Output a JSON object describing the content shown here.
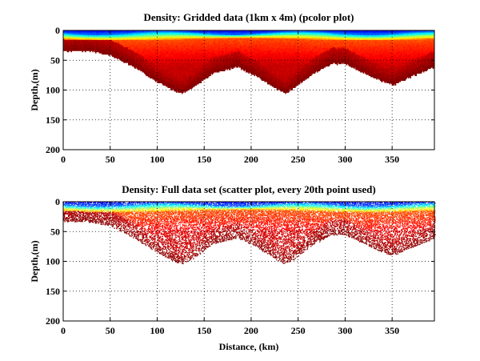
{
  "figure": {
    "background": "#ffffff"
  },
  "colormap": [
    "#00008f",
    "#0000ff",
    "#0080ff",
    "#00ffff",
    "#80ff80",
    "#ffff00",
    "#ff8000",
    "#ff0000",
    "#800000"
  ],
  "chart_data": [
    {
      "type": "heatmap",
      "title": "Density: Gridded data (1km x 4m) (pcolor plot)",
      "xlabel": "",
      "ylabel": "Depth,(m)",
      "xlim": [
        0,
        395
      ],
      "ylim": [
        200,
        0
      ],
      "y_reversed": true,
      "xticks": [
        0,
        50,
        100,
        150,
        200,
        250,
        300,
        350
      ],
      "yticks": [
        0,
        50,
        100,
        150,
        200
      ],
      "grid": true,
      "grid_style": "dotted",
      "rendering": "pcolor",
      "resolution": "1km x 4m",
      "bottom_depth_profile": {
        "x": [
          0,
          25,
          50,
          75,
          100,
          118,
          126,
          135,
          160,
          185,
          205,
          228,
          236,
          245,
          265,
          285,
          300,
          320,
          340,
          352,
          365,
          380,
          395
        ],
        "depth": [
          33,
          33,
          40,
          60,
          85,
          100,
          104,
          98,
          70,
          60,
          75,
          98,
          104,
          96,
          72,
          55,
          55,
          70,
          85,
          90,
          80,
          70,
          60
        ]
      }
    },
    {
      "type": "scatter",
      "title": "Density: Full data set (scatter plot, every 20th point used)",
      "xlabel": "Distance, (km)",
      "ylabel": "Depth,(m)",
      "xlim": [
        0,
        395
      ],
      "ylim": [
        200,
        0
      ],
      "y_reversed": true,
      "xticks": [
        0,
        50,
        100,
        150,
        200,
        250,
        300,
        350
      ],
      "yticks": [
        0,
        50,
        100,
        150,
        200
      ],
      "grid": true,
      "grid_style": "dotted",
      "sampling": "every 20th point used",
      "bottom_depth_profile": {
        "x": [
          0,
          25,
          50,
          75,
          100,
          118,
          126,
          135,
          160,
          185,
          205,
          228,
          236,
          245,
          265,
          285,
          300,
          320,
          340,
          352,
          365,
          380,
          395
        ],
        "depth": [
          33,
          33,
          40,
          60,
          85,
          100,
          104,
          98,
          70,
          60,
          75,
          98,
          104,
          96,
          72,
          55,
          55,
          70,
          85,
          90,
          80,
          70,
          60
        ]
      }
    }
  ]
}
